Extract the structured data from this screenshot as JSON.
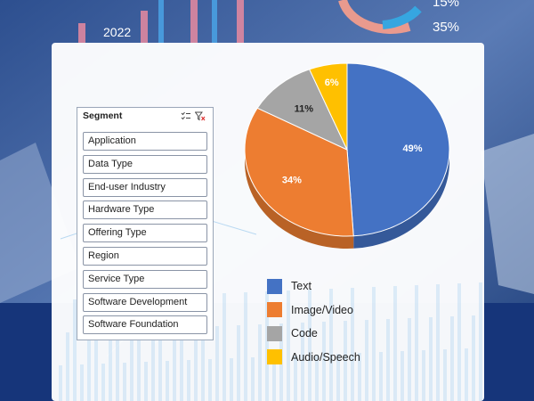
{
  "background": {
    "year_label": "2022",
    "percent_a": "15%",
    "percent_b": "35%"
  },
  "slicer": {
    "title": "Segment",
    "icons": [
      "multi-select-icon",
      "clear-filter-icon"
    ],
    "items": [
      "Application",
      "Data Type",
      "End-user Industry",
      "Hardware Type",
      "Offering Type",
      "Region",
      "Service Type",
      "Software Development",
      "Software Foundation"
    ]
  },
  "chart_data": {
    "type": "pie",
    "style": "3d",
    "title": "",
    "categories": [
      "Text",
      "Image/Video",
      "Code",
      "Audio/Speech"
    ],
    "values": [
      49,
      34,
      11,
      6
    ],
    "data_labels": [
      "49%",
      "34%",
      "11%",
      "6%"
    ],
    "colors": [
      "#4472c4",
      "#ed7d31",
      "#a5a5a5",
      "#ffc000"
    ],
    "legend_position": "bottom"
  }
}
